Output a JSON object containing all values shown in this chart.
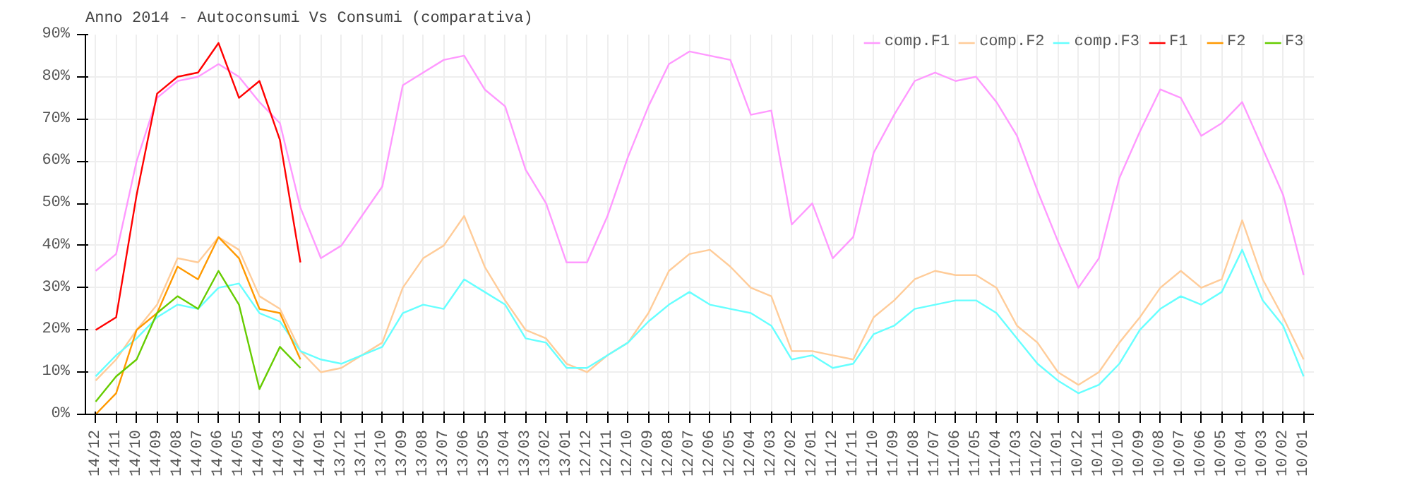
{
  "chart_data": {
    "type": "line",
    "title": "Anno 2014 - Autoconsumi Vs Consumi (comparativa)",
    "categories": [
      "14/12",
      "14/11",
      "14/10",
      "14/09",
      "14/08",
      "14/07",
      "14/06",
      "14/05",
      "14/04",
      "14/03",
      "14/02",
      "14/01",
      "13/12",
      "13/11",
      "13/10",
      "13/09",
      "13/08",
      "13/07",
      "13/06",
      "13/05",
      "13/04",
      "13/03",
      "13/02",
      "13/01",
      "12/12",
      "12/11",
      "12/10",
      "12/09",
      "12/08",
      "12/07",
      "12/06",
      "12/05",
      "12/04",
      "12/03",
      "12/02",
      "12/01",
      "11/12",
      "11/11",
      "11/10",
      "11/09",
      "11/08",
      "11/07",
      "11/06",
      "11/05",
      "11/04",
      "11/03",
      "11/02",
      "11/01",
      "10/12",
      "10/11",
      "10/10",
      "10/09",
      "10/08",
      "10/07",
      "10/06",
      "10/05",
      "10/04",
      "10/03",
      "10/02",
      "10/01"
    ],
    "series": [
      {
        "name": "comp.F1",
        "color": "#ff99ff",
        "values": [
          34,
          38,
          60,
          75,
          79,
          80,
          83,
          80,
          74,
          69,
          49,
          37,
          40,
          47,
          54,
          78,
          81,
          84,
          85,
          77,
          73,
          58,
          50,
          36,
          36,
          47,
          61,
          73,
          83,
          86,
          85,
          84,
          71,
          72,
          45,
          50,
          37,
          42,
          62,
          71,
          79,
          81,
          79,
          80,
          74,
          66,
          53,
          41,
          30,
          37,
          56,
          67,
          77,
          75,
          66,
          69,
          74,
          63,
          52,
          33
        ]
      },
      {
        "name": "comp.F2",
        "color": "#ffcc99",
        "values": [
          8,
          13,
          20,
          26,
          37,
          36,
          42,
          39,
          28,
          25,
          15,
          10,
          11,
          14,
          17,
          30,
          37,
          40,
          47,
          35,
          27,
          20,
          18,
          12,
          10,
          14,
          17,
          24,
          34,
          38,
          39,
          35,
          30,
          28,
          15,
          15,
          14,
          13,
          23,
          27,
          32,
          34,
          33,
          33,
          30,
          21,
          17,
          10,
          7,
          10,
          17,
          23,
          30,
          34,
          30,
          32,
          46,
          32,
          23,
          13
        ]
      },
      {
        "name": "comp.F3",
        "color": "#66ffff",
        "values": [
          9,
          14,
          18,
          23,
          26,
          25,
          30,
          31,
          24,
          22,
          15,
          13,
          12,
          14,
          16,
          24,
          26,
          25,
          32,
          29,
          26,
          18,
          17,
          11,
          11,
          14,
          17,
          22,
          26,
          29,
          26,
          25,
          24,
          21,
          13,
          14,
          11,
          12,
          19,
          21,
          25,
          26,
          27,
          27,
          24,
          18,
          12,
          8,
          5,
          7,
          12,
          20,
          25,
          28,
          26,
          29,
          39,
          27,
          21,
          9
        ]
      },
      {
        "name": "F1",
        "color": "#ff0000",
        "values": [
          20,
          23,
          52,
          76,
          80,
          81,
          88,
          75,
          79,
          65,
          36,
          null,
          null,
          null,
          null,
          null,
          null,
          null,
          null,
          null,
          null,
          null,
          null,
          null,
          null,
          null,
          null,
          null,
          null,
          null,
          null,
          null,
          null,
          null,
          null,
          null,
          null,
          null,
          null,
          null,
          null,
          null,
          null,
          null,
          null,
          null,
          null,
          null,
          null,
          null,
          null,
          null,
          null,
          null,
          null,
          null,
          null,
          null,
          null,
          null
        ]
      },
      {
        "name": "F2",
        "color": "#ff9900",
        "values": [
          0,
          5,
          20,
          24,
          35,
          32,
          42,
          37,
          25,
          24,
          13,
          null,
          null,
          null,
          null,
          null,
          null,
          null,
          null,
          null,
          null,
          null,
          null,
          null,
          null,
          null,
          null,
          null,
          null,
          null,
          null,
          null,
          null,
          null,
          null,
          null,
          null,
          null,
          null,
          null,
          null,
          null,
          null,
          null,
          null,
          null,
          null,
          null,
          null,
          null,
          null,
          null,
          null,
          null,
          null,
          null,
          null,
          null,
          null,
          null
        ]
      },
      {
        "name": "F3",
        "color": "#66cc00",
        "values": [
          3,
          9,
          13,
          24,
          28,
          25,
          34,
          26,
          6,
          16,
          11,
          null,
          null,
          null,
          null,
          null,
          null,
          null,
          null,
          null,
          null,
          null,
          null,
          null,
          null,
          null,
          null,
          null,
          null,
          null,
          null,
          null,
          null,
          null,
          null,
          null,
          null,
          null,
          null,
          null,
          null,
          null,
          null,
          null,
          null,
          null,
          null,
          null,
          null,
          null,
          null,
          null,
          null,
          null,
          null,
          null,
          null,
          null,
          null,
          null
        ]
      }
    ],
    "ylim": [
      0,
      90
    ],
    "yticks": [
      {
        "value": 0,
        "label": "0%"
      },
      {
        "value": 10,
        "label": "10%"
      },
      {
        "value": 20,
        "label": "20%"
      },
      {
        "value": 30,
        "label": "30%"
      },
      {
        "value": 40,
        "label": "40%"
      },
      {
        "value": 50,
        "label": "50%"
      },
      {
        "value": 60,
        "label": "60%"
      },
      {
        "value": 70,
        "label": "70%"
      },
      {
        "value": 80,
        "label": "80%"
      },
      {
        "value": 90,
        "label": "90%"
      }
    ],
    "grid": true,
    "legend": "top right",
    "marker": "none",
    "line_style": "solid"
  }
}
